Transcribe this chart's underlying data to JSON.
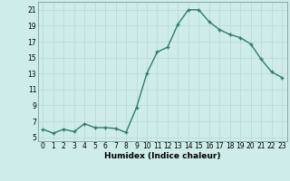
{
  "x": [
    0,
    1,
    2,
    3,
    4,
    5,
    6,
    7,
    8,
    9,
    10,
    11,
    12,
    13,
    14,
    15,
    16,
    17,
    18,
    19,
    20,
    21,
    22,
    23
  ],
  "y": [
    6.0,
    5.5,
    6.0,
    5.7,
    6.7,
    6.2,
    6.2,
    6.1,
    5.6,
    8.7,
    13.0,
    15.7,
    16.3,
    19.2,
    21.0,
    21.0,
    19.5,
    18.5,
    17.9,
    17.5,
    16.7,
    14.8,
    13.2,
    12.5
  ],
  "line_color": "#2e7d6e",
  "marker": "+",
  "marker_size": 3.5,
  "xlabel": "Humidex (Indice chaleur)",
  "xlim": [
    -0.5,
    23.5
  ],
  "ylim": [
    4.5,
    22
  ],
  "yticks": [
    5,
    7,
    9,
    11,
    13,
    15,
    17,
    19,
    21
  ],
  "xticks": [
    0,
    1,
    2,
    3,
    4,
    5,
    6,
    7,
    8,
    9,
    10,
    11,
    12,
    13,
    14,
    15,
    16,
    17,
    18,
    19,
    20,
    21,
    22,
    23
  ],
  "bg_color": "#ceecea",
  "grid_color": "#b8d8d5",
  "line_width": 1.0,
  "tick_fontsize": 5.5,
  "xlabel_fontsize": 6.5
}
